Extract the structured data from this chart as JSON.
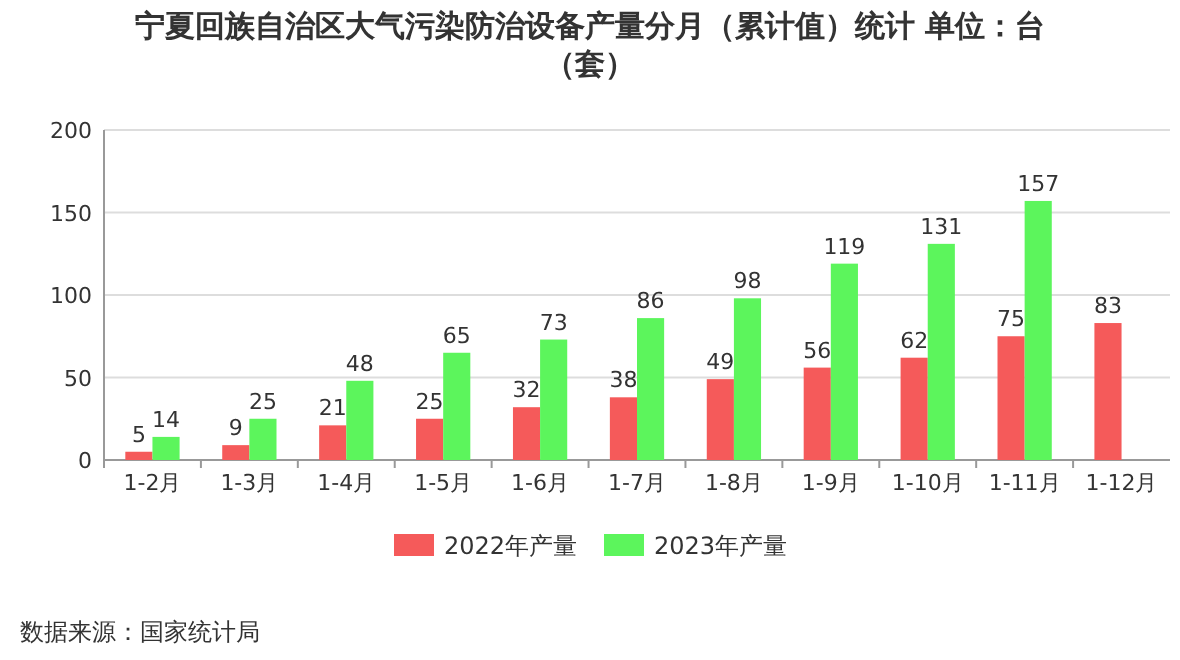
{
  "chart_data": {
    "type": "bar",
    "title": "宁夏回族自治区大气污染防治设备产量分月（累计值）统计 单位：台（套）",
    "categories": [
      "1-2月",
      "1-3月",
      "1-4月",
      "1-5月",
      "1-6月",
      "1-7月",
      "1-8月",
      "1-9月",
      "1-10月",
      "1-11月",
      "1-12月"
    ],
    "series": [
      {
        "name": "2022年产量",
        "color": "#f55a5a",
        "values": [
          5,
          9,
          21,
          25,
          32,
          38,
          49,
          56,
          62,
          75,
          83
        ]
      },
      {
        "name": "2023年产量",
        "color": "#5cf55c",
        "values": [
          14,
          25,
          48,
          65,
          73,
          86,
          98,
          119,
          131,
          157,
          null
        ]
      }
    ],
    "ylim": [
      0,
      200
    ],
    "yticks": [
      0,
      50,
      100,
      150,
      200
    ],
    "grid": "y",
    "legend": "bottom",
    "data_labels": true,
    "annotations": [
      "数据来源：国家统计局"
    ]
  }
}
